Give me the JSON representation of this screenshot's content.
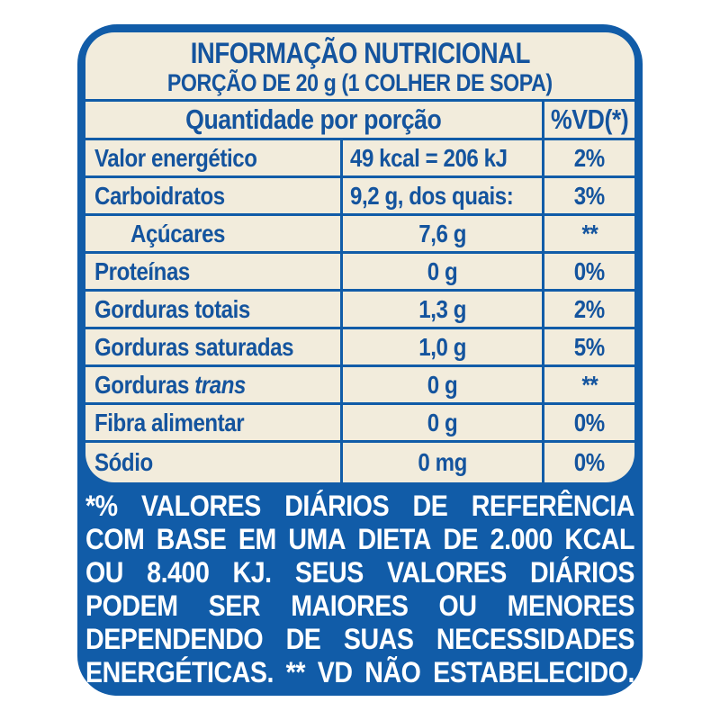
{
  "colors": {
    "page_bg": "#ffffff",
    "panel_blue": "#115ca8",
    "card_cream": "#f2ecdc",
    "text_blue": "#14549e",
    "footer_text": "#ffffff"
  },
  "header": {
    "title": "INFORMAÇÃO NUTRICIONAL",
    "subtitle": "PORÇÃO DE 20 g (1 COLHER DE SOPA)"
  },
  "table": {
    "header": {
      "quantity_label": "Quantidade por porção",
      "dv_label": "%VD(*)"
    },
    "rows": [
      {
        "label": "Valor energético",
        "amount": "49 kcal = 206 kJ",
        "dv": "2%",
        "amount_align": "left"
      },
      {
        "label": "Carboidratos",
        "amount": "9,2 g, dos quais:",
        "dv": "3%",
        "amount_align": "left"
      },
      {
        "label": "Açúcares",
        "amount": "7,6 g",
        "dv": "**",
        "indent": true
      },
      {
        "label": "Proteínas",
        "amount": "0 g",
        "dv": "0%"
      },
      {
        "label": "Gorduras totais",
        "amount": "1,3 g",
        "dv": "2%"
      },
      {
        "label": "Gorduras saturadas",
        "amount": "1,0 g",
        "dv": "5%"
      },
      {
        "label": "Gorduras",
        "label_italic": "trans",
        "amount": "0 g",
        "dv": "**"
      },
      {
        "label": "Fibra alimentar",
        "amount": "0 g",
        "dv": "0%"
      },
      {
        "label": "Sódio",
        "amount": "0 mg",
        "dv": "0%"
      }
    ]
  },
  "footer": {
    "lines": [
      "*% VALORES DIÁRIOS DE REFERÊNCIA",
      "COM BASE EM UMA DIETA DE 2.000 KCAL",
      "OU 8.400 KJ. SEUS VALORES DIÁRIOS",
      "PODEM SER MAIORES OU MENORES",
      "DEPENDENDO DE SUAS NECESSIDADES",
      "ENERGÉTICAS. ** VD NÃO ESTABELECIDO."
    ]
  }
}
